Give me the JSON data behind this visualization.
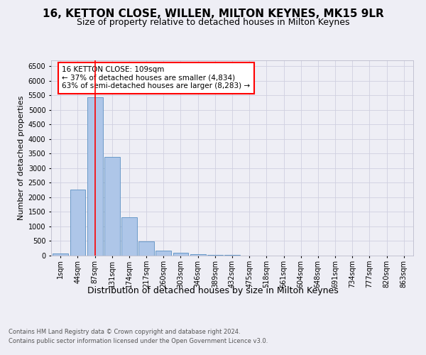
{
  "title1": "16, KETTON CLOSE, WILLEN, MILTON KEYNES, MK15 9LR",
  "title2": "Size of property relative to detached houses in Milton Keynes",
  "xlabel": "Distribution of detached houses by size in Milton Keynes",
  "ylabel": "Number of detached properties",
  "footer1": "Contains HM Land Registry data © Crown copyright and database right 2024.",
  "footer2": "Contains public sector information licensed under the Open Government Licence v3.0.",
  "bar_labels": [
    "1sqm",
    "44sqm",
    "87sqm",
    "131sqm",
    "174sqm",
    "217sqm",
    "260sqm",
    "303sqm",
    "346sqm",
    "389sqm",
    "432sqm",
    "475sqm",
    "518sqm",
    "561sqm",
    "604sqm",
    "648sqm",
    "691sqm",
    "734sqm",
    "777sqm",
    "820sqm",
    "863sqm"
  ],
  "bar_values": [
    70,
    2270,
    5430,
    3380,
    1310,
    480,
    160,
    90,
    55,
    35,
    20,
    10,
    5,
    2,
    1,
    0,
    0,
    0,
    0,
    0,
    0
  ],
  "bar_color": "#aec6e8",
  "bar_edge_color": "#5a8fc2",
  "grid_color": "#d0d0e0",
  "background_color": "#eeeef5",
  "annotation_text": "16 KETTON CLOSE: 109sqm\n← 37% of detached houses are smaller (4,834)\n63% of semi-detached houses are larger (8,283) →",
  "vline_color": "red",
  "vline_x": 2,
  "ylim": [
    0,
    6700
  ],
  "yticks": [
    0,
    500,
    1000,
    1500,
    2000,
    2500,
    3000,
    3500,
    4000,
    4500,
    5000,
    5500,
    6000,
    6500
  ],
  "title1_fontsize": 11,
  "title2_fontsize": 9,
  "xlabel_fontsize": 9,
  "ylabel_fontsize": 8,
  "tick_fontsize": 7,
  "annotation_fontsize": 7.5,
  "footer_fontsize": 6
}
